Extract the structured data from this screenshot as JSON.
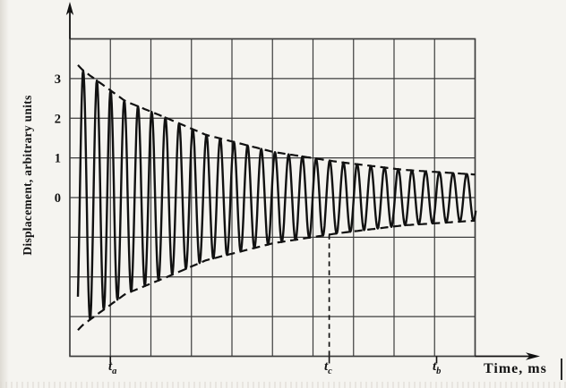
{
  "figure": {
    "background": "#f5f4f0",
    "ink": "#111111",
    "grid_color": "#3c3c3c"
  },
  "axes": {
    "y": {
      "label": "Displacement, arbitrary units",
      "range": [
        -4,
        4
      ],
      "gridline_step": 1,
      "ticks": [
        {
          "value": 3,
          "label": "3"
        },
        {
          "value": 2,
          "label": "2"
        },
        {
          "value": 1,
          "label": "1"
        },
        {
          "value": 0,
          "label": "0"
        }
      ]
    },
    "x": {
      "label": "Time, ms",
      "range": [
        0,
        10
      ],
      "gridline_step": 1,
      "markers": [
        {
          "base": "t",
          "sub": "a",
          "value": 1.0
        },
        {
          "base": "t",
          "sub": "c",
          "value": 6.4
        },
        {
          "base": "t",
          "sub": "b",
          "value": 9.05
        }
      ]
    }
  },
  "chart_data": {
    "type": "line",
    "title": "",
    "xlabel": "Time, ms",
    "ylabel": "Displacement, arbitrary units",
    "xlim": [
      0,
      10
    ],
    "ylim": [
      -4,
      4
    ],
    "grid": true,
    "description": "Exponentially damped free oscillation: displacement = A(t)·cos(2π(t−t_peak)/T), with dashed decay envelopes ±A(t); dashed vertical guide at t_c up to the lower envelope.",
    "oscillation": {
      "period": 0.338,
      "first_peak_t": 0.33,
      "t_start": 0.2,
      "t_end": 10.02
    },
    "envelope_points": [
      [
        0.2,
        3.34
      ],
      [
        0.33,
        3.2
      ],
      [
        1.37,
        2.43
      ],
      [
        2.4,
        2.0
      ],
      [
        3.36,
        1.58
      ],
      [
        5.02,
        1.15
      ],
      [
        6.61,
        0.9
      ],
      [
        8.23,
        0.7
      ],
      [
        10.02,
        0.58
      ]
    ],
    "markers": {
      "t_a": 1.0,
      "t_c": 6.4,
      "t_b": 9.05
    },
    "guide_at_tc": {
      "from": "x-axis",
      "to": "lower envelope",
      "style": "dashed"
    }
  }
}
